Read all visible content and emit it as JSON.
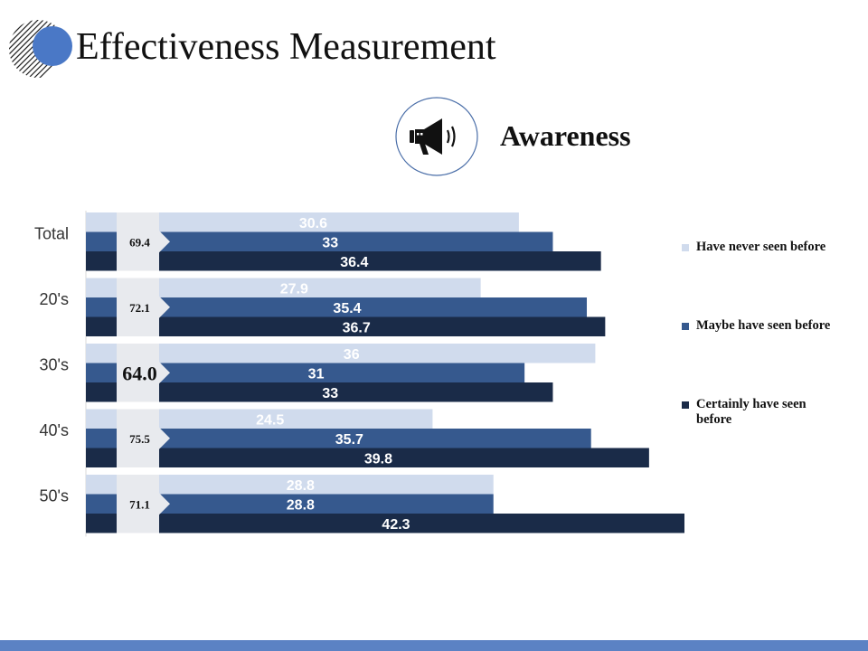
{
  "page": {
    "title": "Effectiveness Measurement",
    "subtitle": "Awareness",
    "icon": "megaphone-icon",
    "colors": {
      "logo_circle": "#4a78c6",
      "logo_stripes": "#222222",
      "icon_ring": "#4a6ea8",
      "footer": "#5b82c4"
    }
  },
  "chart_data": {
    "type": "bar",
    "orientation": "horizontal",
    "title": "Awareness",
    "categories": [
      "Total",
      "20's",
      "30's",
      "40's",
      "50's"
    ],
    "series": [
      {
        "name": "Have never seen before",
        "color": "#d0dbed",
        "label_color": "#ffffff",
        "values": [
          30.6,
          27.9,
          36,
          24.5,
          28.8
        ]
      },
      {
        "name": "Maybe have seen before",
        "color": "#36598e",
        "label_color": "#ffffff",
        "values": [
          33,
          35.4,
          31,
          35.7,
          28.8
        ]
      },
      {
        "name": "Certainly have seen before",
        "color": "#1a2b48",
        "label_color": "#ffffff",
        "values": [
          36.4,
          36.7,
          33,
          39.8,
          42.3
        ]
      }
    ],
    "totals": [
      "69.4",
      "72.1",
      "64.0",
      "75.5",
      "71.1"
    ],
    "highlight_index": 2,
    "xlim": [
      0,
      45
    ],
    "grid": false,
    "legend_position": "right"
  }
}
